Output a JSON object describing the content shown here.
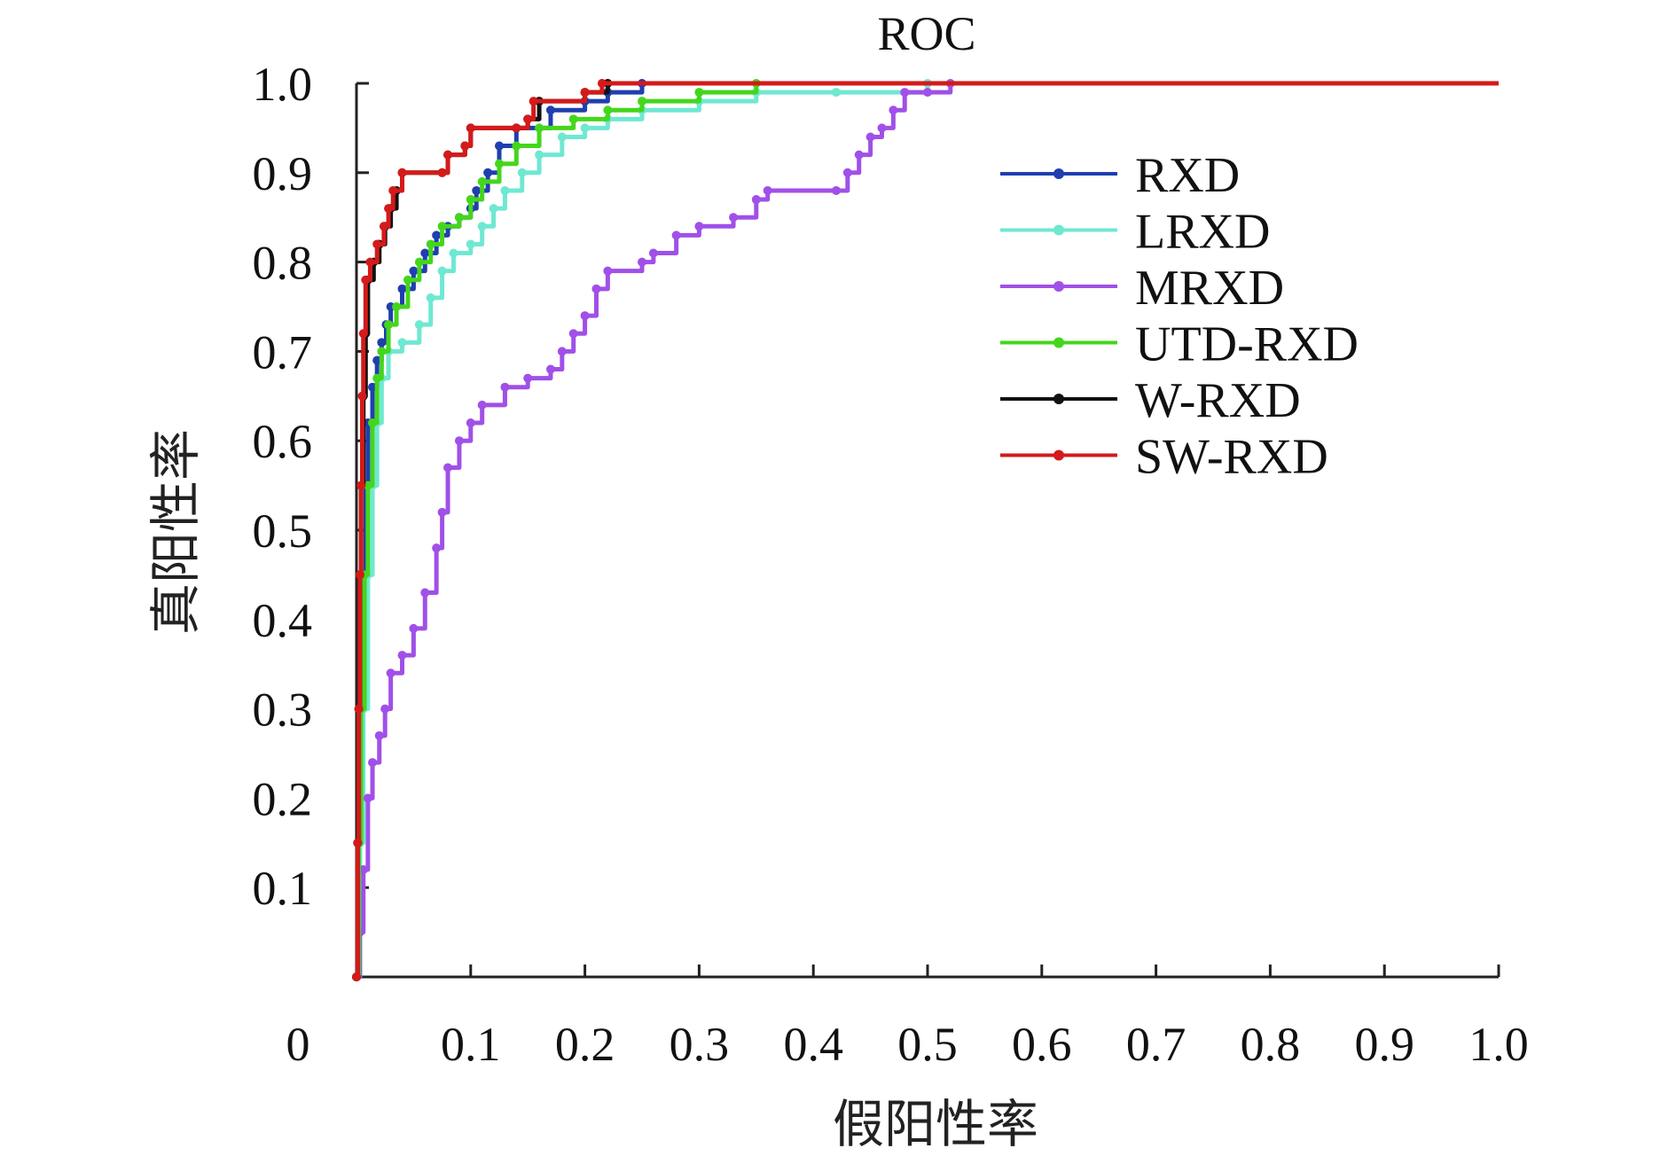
{
  "chart_data": {
    "type": "line",
    "title": "ROC",
    "xlabel": "假阳性率",
    "ylabel": "真阳性率",
    "xlim": [
      0,
      1.0
    ],
    "ylim": [
      0,
      1.0
    ],
    "x_ticks": [
      "0",
      "0.1",
      "0.2",
      "0.3",
      "0.4",
      "0.5",
      "0.6",
      "0.7",
      "0.8",
      "0.9",
      "1.0"
    ],
    "y_ticks": [
      "0.1",
      "0.2",
      "0.3",
      "0.4",
      "0.5",
      "0.6",
      "0.7",
      "0.8",
      "0.9",
      "1.0"
    ],
    "grid": false,
    "legend_position": "top-right",
    "series": [
      {
        "name": "RXD",
        "color": "#1f3fb0",
        "points": [
          [
            0,
            0.0
          ],
          [
            0.002,
            0.15
          ],
          [
            0.004,
            0.3
          ],
          [
            0.006,
            0.45
          ],
          [
            0.008,
            0.55
          ],
          [
            0.01,
            0.62
          ],
          [
            0.014,
            0.66
          ],
          [
            0.018,
            0.69
          ],
          [
            0.022,
            0.71
          ],
          [
            0.026,
            0.73
          ],
          [
            0.03,
            0.75
          ],
          [
            0.04,
            0.77
          ],
          [
            0.05,
            0.79
          ],
          [
            0.06,
            0.81
          ],
          [
            0.07,
            0.83
          ],
          [
            0.08,
            0.84
          ],
          [
            0.09,
            0.85
          ],
          [
            0.1,
            0.86
          ],
          [
            0.105,
            0.88
          ],
          [
            0.115,
            0.9
          ],
          [
            0.125,
            0.93
          ],
          [
            0.14,
            0.95
          ],
          [
            0.17,
            0.97
          ],
          [
            0.2,
            0.98
          ],
          [
            0.22,
            0.99
          ],
          [
            0.25,
            1.0
          ],
          [
            1.0,
            1.0
          ]
        ]
      },
      {
        "name": "LRXD",
        "color": "#6fe8d2",
        "points": [
          [
            0,
            0.0
          ],
          [
            0.003,
            0.15
          ],
          [
            0.006,
            0.3
          ],
          [
            0.01,
            0.45
          ],
          [
            0.014,
            0.55
          ],
          [
            0.018,
            0.62
          ],
          [
            0.022,
            0.67
          ],
          [
            0.028,
            0.7
          ],
          [
            0.04,
            0.71
          ],
          [
            0.055,
            0.73
          ],
          [
            0.065,
            0.76
          ],
          [
            0.075,
            0.79
          ],
          [
            0.085,
            0.81
          ],
          [
            0.1,
            0.82
          ],
          [
            0.11,
            0.84
          ],
          [
            0.12,
            0.86
          ],
          [
            0.13,
            0.88
          ],
          [
            0.145,
            0.9
          ],
          [
            0.16,
            0.92
          ],
          [
            0.18,
            0.94
          ],
          [
            0.2,
            0.95
          ],
          [
            0.22,
            0.96
          ],
          [
            0.25,
            0.97
          ],
          [
            0.3,
            0.98
          ],
          [
            0.35,
            0.99
          ],
          [
            0.42,
            0.99
          ],
          [
            0.5,
            1.0
          ],
          [
            1.0,
            1.0
          ]
        ]
      },
      {
        "name": "MRXD",
        "color": "#a050e8",
        "points": [
          [
            0,
            0.0
          ],
          [
            0.003,
            0.05
          ],
          [
            0.006,
            0.12
          ],
          [
            0.01,
            0.2
          ],
          [
            0.014,
            0.24
          ],
          [
            0.02,
            0.27
          ],
          [
            0.025,
            0.3
          ],
          [
            0.03,
            0.34
          ],
          [
            0.04,
            0.36
          ],
          [
            0.05,
            0.39
          ],
          [
            0.06,
            0.43
          ],
          [
            0.07,
            0.48
          ],
          [
            0.075,
            0.52
          ],
          [
            0.08,
            0.57
          ],
          [
            0.09,
            0.6
          ],
          [
            0.1,
            0.62
          ],
          [
            0.11,
            0.64
          ],
          [
            0.13,
            0.66
          ],
          [
            0.15,
            0.67
          ],
          [
            0.17,
            0.68
          ],
          [
            0.18,
            0.7
          ],
          [
            0.19,
            0.72
          ],
          [
            0.2,
            0.74
          ],
          [
            0.21,
            0.77
          ],
          [
            0.22,
            0.79
          ],
          [
            0.25,
            0.8
          ],
          [
            0.26,
            0.81
          ],
          [
            0.28,
            0.83
          ],
          [
            0.3,
            0.84
          ],
          [
            0.33,
            0.85
          ],
          [
            0.35,
            0.87
          ],
          [
            0.36,
            0.88
          ],
          [
            0.42,
            0.88
          ],
          [
            0.43,
            0.9
          ],
          [
            0.44,
            0.92
          ],
          [
            0.45,
            0.94
          ],
          [
            0.46,
            0.95
          ],
          [
            0.47,
            0.97
          ],
          [
            0.48,
            0.99
          ],
          [
            0.5,
            0.99
          ],
          [
            0.52,
            1.0
          ],
          [
            1.0,
            1.0
          ]
        ]
      },
      {
        "name": "UTD-RXD",
        "color": "#44d61c",
        "points": [
          [
            0,
            0.0
          ],
          [
            0.002,
            0.15
          ],
          [
            0.004,
            0.3
          ],
          [
            0.007,
            0.45
          ],
          [
            0.01,
            0.55
          ],
          [
            0.014,
            0.62
          ],
          [
            0.018,
            0.67
          ],
          [
            0.022,
            0.7
          ],
          [
            0.028,
            0.73
          ],
          [
            0.035,
            0.75
          ],
          [
            0.045,
            0.78
          ],
          [
            0.055,
            0.8
          ],
          [
            0.065,
            0.82
          ],
          [
            0.075,
            0.84
          ],
          [
            0.09,
            0.85
          ],
          [
            0.1,
            0.87
          ],
          [
            0.11,
            0.89
          ],
          [
            0.125,
            0.91
          ],
          [
            0.14,
            0.93
          ],
          [
            0.16,
            0.95
          ],
          [
            0.19,
            0.96
          ],
          [
            0.22,
            0.97
          ],
          [
            0.25,
            0.98
          ],
          [
            0.3,
            0.99
          ],
          [
            0.35,
            1.0
          ],
          [
            1.0,
            1.0
          ]
        ]
      },
      {
        "name": "W-RXD",
        "color": "#111111",
        "points": [
          [
            0,
            0.0
          ],
          [
            0.001,
            0.15
          ],
          [
            0.002,
            0.3
          ],
          [
            0.003,
            0.45
          ],
          [
            0.004,
            0.55
          ],
          [
            0.006,
            0.65
          ],
          [
            0.008,
            0.72
          ],
          [
            0.01,
            0.78
          ],
          [
            0.015,
            0.8
          ],
          [
            0.02,
            0.82
          ],
          [
            0.025,
            0.84
          ],
          [
            0.03,
            0.86
          ],
          [
            0.035,
            0.88
          ],
          [
            0.04,
            0.9
          ],
          [
            0.075,
            0.9
          ],
          [
            0.08,
            0.92
          ],
          [
            0.095,
            0.93
          ],
          [
            0.1,
            0.95
          ],
          [
            0.14,
            0.95
          ],
          [
            0.15,
            0.96
          ],
          [
            0.16,
            0.98
          ],
          [
            0.2,
            0.99
          ],
          [
            0.22,
            1.0
          ],
          [
            1.0,
            1.0
          ]
        ]
      },
      {
        "name": "SW-RXD",
        "color": "#d41a1a",
        "points": [
          [
            0,
            0.0
          ],
          [
            0.001,
            0.15
          ],
          [
            0.002,
            0.3
          ],
          [
            0.003,
            0.45
          ],
          [
            0.004,
            0.55
          ],
          [
            0.005,
            0.65
          ],
          [
            0.006,
            0.72
          ],
          [
            0.008,
            0.78
          ],
          [
            0.012,
            0.8
          ],
          [
            0.018,
            0.82
          ],
          [
            0.024,
            0.84
          ],
          [
            0.028,
            0.86
          ],
          [
            0.032,
            0.88
          ],
          [
            0.04,
            0.9
          ],
          [
            0.075,
            0.9
          ],
          [
            0.08,
            0.92
          ],
          [
            0.095,
            0.93
          ],
          [
            0.1,
            0.95
          ],
          [
            0.14,
            0.95
          ],
          [
            0.15,
            0.96
          ],
          [
            0.155,
            0.98
          ],
          [
            0.2,
            0.99
          ],
          [
            0.215,
            1.0
          ],
          [
            1.0,
            1.0
          ]
        ]
      }
    ]
  }
}
